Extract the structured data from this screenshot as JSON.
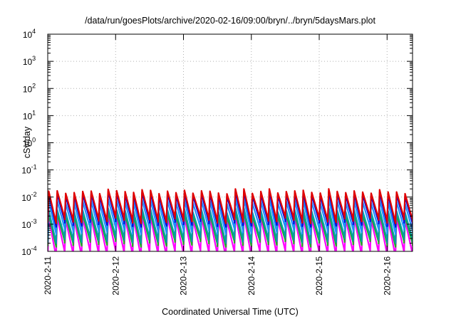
{
  "chart_data": {
    "type": "line",
    "title": "/data/run/goesPlots/archive/2020-02-16/09:00/bryn/../bryn/5daysMars.plot",
    "xlabel": "Coordinated Universal Time (UTC)",
    "ylabel": "cSv/day",
    "yscale": "log",
    "ylim": [
      0.0001,
      10000
    ],
    "y_ticks": [
      {
        "exp": "-4"
      },
      {
        "exp": "-3"
      },
      {
        "exp": "-2"
      },
      {
        "exp": "-1"
      },
      {
        "exp": "0"
      },
      {
        "exp": "1"
      },
      {
        "exp": "2"
      },
      {
        "exp": "3"
      },
      {
        "exp": "4"
      }
    ],
    "y_tick_base": "10",
    "x_ticks": [
      "2020-2-11",
      "2020-2-12",
      "2020-2-13",
      "2020-2-14",
      "2020-2-15",
      "2020-2-16"
    ],
    "xlim": [
      "2020-02-11 00:00",
      "2020-02-16 09:00"
    ],
    "grid": true,
    "cycle_hours": 3,
    "series": [
      {
        "color": "#e00000",
        "peak": 0.015,
        "trough": 0.0016
      },
      {
        "color": "#0000e0",
        "peak": 0.012,
        "trough": 0.0012
      },
      {
        "color": "#1e90ff",
        "peak": 0.0065,
        "trough": 0.00065
      },
      {
        "color": "#00a0a0",
        "peak": 0.003,
        "trough": 0.0003
      },
      {
        "color": "#22aa22",
        "peak": 0.0022,
        "trough": 0.00022
      },
      {
        "color": "#ff00ff",
        "peak": 0.0016,
        "trough": 9e-05
      }
    ]
  }
}
